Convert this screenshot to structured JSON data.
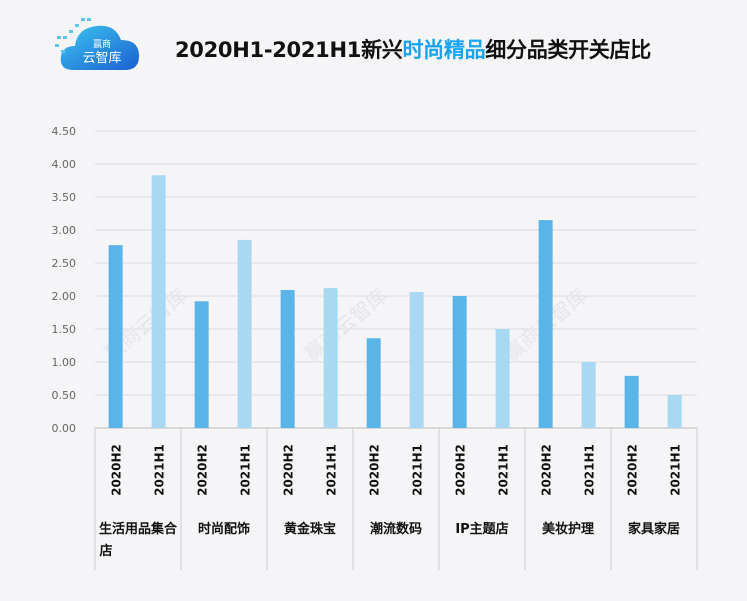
{
  "logo": {
    "line1": "赢商",
    "line2": "云智库"
  },
  "title": {
    "prefix": "2020H1-2021H1新兴",
    "highlight": "时尚精品",
    "suffix": "细分品类开关店比"
  },
  "watermark": "赢商云智库",
  "chart_data": {
    "type": "bar",
    "title": "2020H1-2021H1新兴时尚精品细分品类开关店比",
    "categories": [
      "生活用品集合店",
      "时尚配饰",
      "黄金珠宝",
      "潮流数码",
      "IP主题店",
      "美妆护理",
      "家具家居"
    ],
    "series": [
      {
        "name": "2020H2",
        "color": "#5bb4e8",
        "values": [
          2.77,
          1.92,
          2.09,
          1.36,
          2.0,
          3.15,
          0.79
        ]
      },
      {
        "name": "2021H1",
        "color": "#a8d8f2",
        "values": [
          3.83,
          2.85,
          2.12,
          2.06,
          1.5,
          1.0,
          0.5
        ]
      }
    ],
    "yticks": [
      "0.00",
      "0.50",
      "1.00",
      "1.50",
      "2.00",
      "2.50",
      "3.00",
      "3.50",
      "4.00",
      "4.50"
    ],
    "ylim": [
      0,
      4.5
    ],
    "grid": true,
    "xlabel": "",
    "ylabel": ""
  }
}
